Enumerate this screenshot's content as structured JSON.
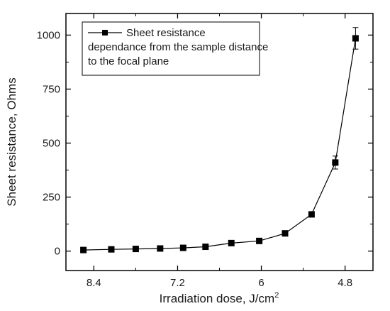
{
  "chart_data": {
    "type": "line",
    "title": "",
    "xlabel": "Irradiation dose, J/cm",
    "xlabel_superscript": "2",
    "ylabel": "Sheet resistance, Ohms",
    "x_reversed": true,
    "xlim": [
      8.8,
      4.4
    ],
    "ylim": [
      -90,
      1100
    ],
    "xticks": [
      8.4,
      7.2,
      6.0,
      4.8
    ],
    "xtick_labels": [
      "8.4",
      "7.2",
      "6",
      "4.8"
    ],
    "yticks": [
      0,
      250,
      500,
      750,
      1000
    ],
    "ytick_labels": [
      "0",
      "250",
      "500",
      "750",
      "1000"
    ],
    "grid": false,
    "legend_position": "top-left",
    "marker": "square",
    "line_color": "#000000",
    "series": [
      {
        "name": "Sheet resistance dependance from the sample distance to the focal plane",
        "x": [
          8.55,
          8.15,
          7.8,
          7.45,
          7.12,
          6.8,
          6.43,
          6.03,
          5.66,
          5.28,
          4.94,
          4.65
        ],
        "y": [
          5,
          8,
          10,
          12,
          15,
          20,
          37,
          47,
          82,
          170,
          410,
          985
        ],
        "error": [
          3,
          3,
          3,
          3,
          3,
          4,
          5,
          6,
          8,
          12,
          30,
          50
        ]
      }
    ]
  }
}
